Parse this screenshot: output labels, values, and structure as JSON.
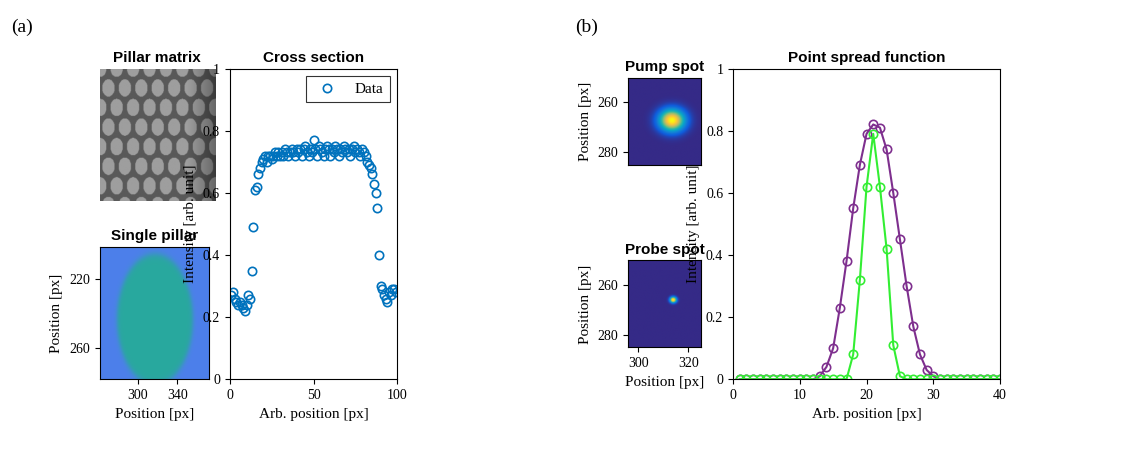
{
  "panel_labels": [
    "(a)",
    "(b)"
  ],
  "chart_data": [
    {
      "type": "image",
      "title": "Pillar matrix",
      "tick_labels": false
    },
    {
      "type": "image",
      "title": "Single pillar",
      "xlabel": "Position [px]",
      "ylabel": "Position [px]",
      "xlim": [
        262,
        372
      ],
      "ylim": [
        278,
        201
      ],
      "xticks": [
        300,
        340
      ],
      "yticks": [
        220,
        260
      ]
    },
    {
      "type": "scatter",
      "title": "Cross section",
      "xlabel": "Arb. position [px]",
      "ylabel": "Intensity [arb. unit]",
      "xlim": [
        0,
        100
      ],
      "ylim": [
        0,
        1
      ],
      "xticks": [
        0,
        50,
        100
      ],
      "yticks": [
        0,
        0.2,
        0.4,
        0.6,
        0.8,
        1
      ],
      "legend": "upper right",
      "series": [
        {
          "name": "Data",
          "color": "#0072bd",
          "marker": "o",
          "line_style": "none",
          "x": [
            1,
            2,
            3,
            4,
            5,
            6,
            7,
            8,
            9,
            10,
            11,
            12,
            13,
            14,
            15,
            16,
            17,
            18,
            19,
            20,
            21,
            22,
            23,
            24,
            25,
            26,
            27,
            28,
            29,
            30,
            31,
            32,
            33,
            34,
            35,
            36,
            37,
            38,
            39,
            40,
            41,
            42,
            43,
            44,
            45,
            46,
            47,
            48,
            49,
            50,
            51,
            52,
            53,
            54,
            55,
            56,
            57,
            58,
            59,
            60,
            61,
            62,
            63,
            64,
            65,
            66,
            67,
            68,
            69,
            70,
            71,
            72,
            73,
            74,
            75,
            76,
            77,
            78,
            79,
            80,
            81,
            82,
            83,
            84,
            85,
            86,
            87,
            88,
            89,
            90,
            91,
            92,
            93,
            94,
            95,
            96,
            97,
            98,
            99
          ],
          "values": [
            0.27,
            0.28,
            0.26,
            0.25,
            0.24,
            0.25,
            0.24,
            0.23,
            0.22,
            0.24,
            0.27,
            0.26,
            0.35,
            0.49,
            0.61,
            0.62,
            0.66,
            0.68,
            0.7,
            0.71,
            0.72,
            0.7,
            0.72,
            0.72,
            0.71,
            0.72,
            0.73,
            0.72,
            0.73,
            0.72,
            0.73,
            0.72,
            0.74,
            0.73,
            0.72,
            0.73,
            0.74,
            0.73,
            0.72,
            0.74,
            0.73,
            0.74,
            0.72,
            0.74,
            0.75,
            0.73,
            0.72,
            0.74,
            0.73,
            0.77,
            0.74,
            0.72,
            0.75,
            0.74,
            0.73,
            0.72,
            0.74,
            0.75,
            0.74,
            0.72,
            0.74,
            0.73,
            0.75,
            0.74,
            0.72,
            0.74,
            0.73,
            0.75,
            0.74,
            0.73,
            0.74,
            0.72,
            0.74,
            0.75,
            0.73,
            0.74,
            0.73,
            0.72,
            0.74,
            0.73,
            0.72,
            0.7,
            0.69,
            0.68,
            0.66,
            0.63,
            0.6,
            0.55,
            0.4,
            0.3,
            0.29,
            0.27,
            0.26,
            0.25,
            0.28,
            0.27,
            0.29,
            0.29,
            0.28
          ]
        }
      ]
    },
    {
      "type": "image",
      "title": "Pump spot",
      "ylabel": "Position [px]",
      "tick_labels": "y",
      "xlim": [
        296,
        325
      ],
      "ylim": [
        285,
        250
      ],
      "yticks": [
        260,
        280
      ]
    },
    {
      "type": "image",
      "title": "Probe spot",
      "xlabel": "Position [px]",
      "ylabel": "Position [px]",
      "xlim": [
        296,
        325
      ],
      "ylim": [
        285,
        250
      ],
      "xticks": [
        300,
        320
      ],
      "yticks": [
        260,
        280
      ]
    },
    {
      "type": "line",
      "title": "Point spread function",
      "xlabel": "Arb. position [px]",
      "ylabel": "Intensity [arb. unit]",
      "xlim": [
        0,
        40
      ],
      "ylim": [
        0,
        1
      ],
      "xticks": [
        0,
        10,
        20,
        30,
        40
      ],
      "yticks": [
        0,
        0.2,
        0.4,
        0.6,
        0.8,
        1
      ],
      "series": [
        {
          "color": "#7e2f8e",
          "marker": "o",
          "line_style": "solid",
          "x": [
            1,
            2,
            3,
            4,
            5,
            6,
            7,
            8,
            9,
            10,
            11,
            12,
            13,
            14,
            15,
            16,
            17,
            18,
            19,
            20,
            21,
            22,
            23,
            24,
            25,
            26,
            27,
            28,
            29,
            30,
            31,
            32,
            33,
            34,
            35,
            36,
            37,
            38,
            39,
            40
          ],
          "values": [
            0,
            0,
            0,
            0,
            0,
            0,
            0,
            0,
            0,
            0,
            0,
            0,
            0.01,
            0.04,
            0.1,
            0.23,
            0.38,
            0.55,
            0.69,
            0.79,
            0.82,
            0.81,
            0.74,
            0.6,
            0.45,
            0.3,
            0.17,
            0.08,
            0.03,
            0.01,
            0,
            0,
            0,
            0,
            0,
            0,
            0,
            0,
            0,
            0
          ]
        },
        {
          "color": "#33ee33",
          "marker": "o",
          "line_style": "solid",
          "x": [
            1,
            2,
            3,
            4,
            5,
            6,
            7,
            8,
            9,
            10,
            11,
            12,
            13,
            14,
            15,
            16,
            17,
            18,
            19,
            20,
            21,
            22,
            23,
            24,
            25,
            26,
            27,
            28,
            29,
            30,
            31,
            32,
            33,
            34,
            35,
            36,
            37,
            38,
            39,
            40
          ],
          "values": [
            0,
            0,
            0,
            0,
            0,
            0,
            0,
            0,
            0,
            0,
            0,
            0,
            0,
            0,
            0,
            0,
            0,
            0.08,
            0.32,
            0.62,
            0.79,
            0.62,
            0.42,
            0.11,
            0.01,
            0,
            0,
            0,
            0,
            0,
            0,
            0,
            0,
            0,
            0,
            0,
            0,
            0,
            0,
            0
          ]
        }
      ]
    }
  ]
}
